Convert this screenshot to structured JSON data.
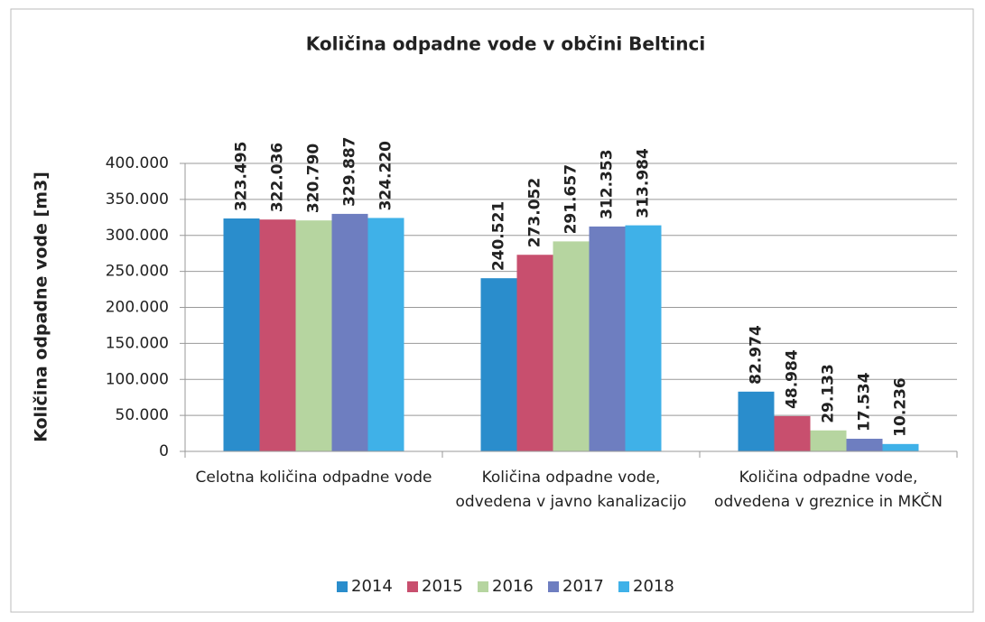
{
  "chart_data": {
    "type": "bar",
    "title": "Količina odpadne vode v občini Beltinci",
    "y_label": "Količina odpadne vode [m3]",
    "categories": [
      "Celotna količina  odpadne vode",
      "Količina odpadne vode, odvedena  v javno kanalizacijo",
      "Količina odpadne vode, odvedena v greznice in MKČN"
    ],
    "series": [
      {
        "name": "2014",
        "color": "#2a8dcc",
        "values": [
          323495,
          240521,
          82974
        ],
        "value_labels": [
          "323.495",
          "240.521",
          "82.974"
        ]
      },
      {
        "name": "2015",
        "color": "#c84f6e",
        "values": [
          322036,
          273052,
          48984
        ],
        "value_labels": [
          "322.036",
          "273.052",
          "48.984"
        ]
      },
      {
        "name": "2016",
        "color": "#b6d5a0",
        "values": [
          320790,
          291657,
          29133
        ],
        "value_labels": [
          "320.790",
          "291.657",
          "29.133"
        ]
      },
      {
        "name": "2017",
        "color": "#6e7ec0",
        "values": [
          329887,
          312353,
          17534
        ],
        "value_labels": [
          "329.887",
          "312.353",
          "17.534"
        ]
      },
      {
        "name": "2018",
        "color": "#3fb1e8",
        "values": [
          324220,
          313984,
          10236
        ],
        "value_labels": [
          "324.220",
          "313.984",
          "10.236"
        ]
      }
    ],
    "ylim": [
      0,
      400000
    ],
    "yticks": [
      0,
      {
        "value": 50000,
        "label": "50.000"
      },
      {
        "value": 100000,
        "label": "100.000"
      },
      {
        "value": 150000,
        "label": "150.000"
      },
      {
        "value": 200000,
        "label": "200.000"
      },
      {
        "value": 250000,
        "label": "250.000"
      },
      {
        "value": 300000,
        "label": "300.000"
      },
      {
        "value": 350000,
        "label": "350.000"
      },
      {
        "value": 400000,
        "label": "400.000"
      }
    ],
    "grid": true,
    "legend": "bottom"
  }
}
